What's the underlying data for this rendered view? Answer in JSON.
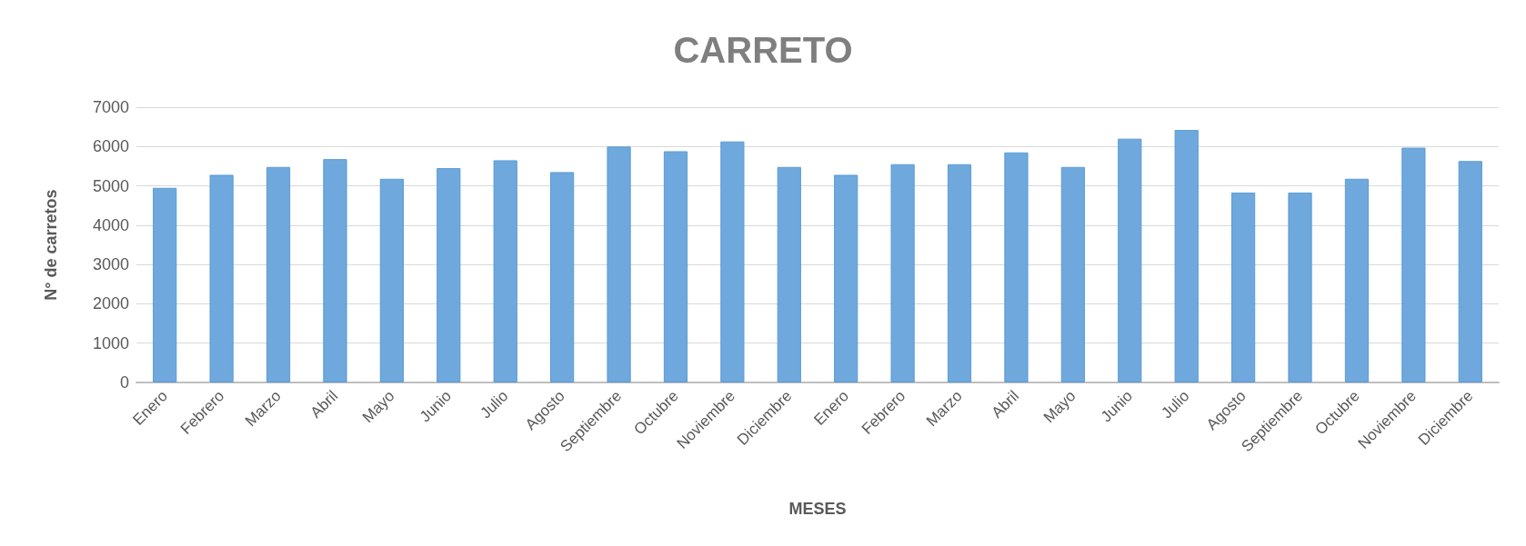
{
  "chart_data": {
    "type": "bar",
    "title": "CARRETO",
    "xlabel": "MESES",
    "ylabel": "N° de carretos",
    "categories": [
      "Enero",
      "Febrero",
      "Marzo",
      "Abril",
      "Mayo",
      "Junio",
      "Julio",
      "Agosto",
      "Septiembre",
      "Octubre",
      "Noviembre",
      "Diciembre",
      "Enero",
      "Febrero",
      "Marzo",
      "Abril",
      "Mayo",
      "Junio",
      "Julio",
      "Agosto",
      "Septiembre",
      "Octubre",
      "Noviembre",
      "Diciembre"
    ],
    "values": [
      4950,
      5280,
      5480,
      5680,
      5180,
      5450,
      5650,
      5350,
      6000,
      5880,
      6130,
      5480,
      5280,
      5550,
      5550,
      5850,
      5480,
      6200,
      6420,
      4830,
      4830,
      5180,
      5970,
      5630
    ],
    "color": "#6fa8dc",
    "ylim": [
      0,
      7000
    ],
    "yticks": [
      0,
      1000,
      2000,
      3000,
      4000,
      5000,
      6000,
      7000
    ],
    "grid": "y"
  }
}
